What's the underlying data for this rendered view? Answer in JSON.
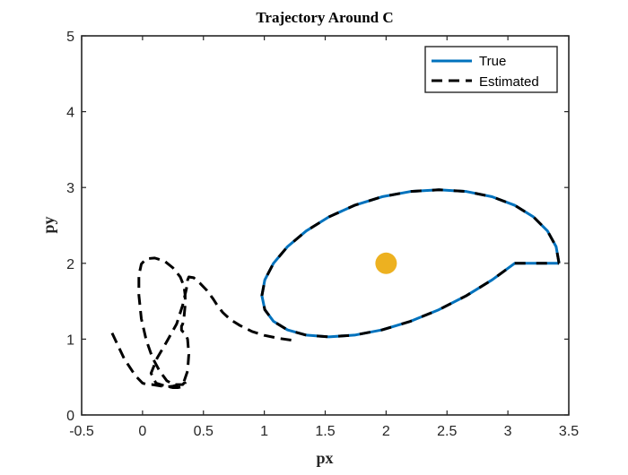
{
  "chart_data": {
    "type": "line",
    "title": "Trajectory Around C",
    "xlabel": "px",
    "ylabel": "py",
    "xlim": [
      -0.5,
      3.5
    ],
    "ylim": [
      0,
      5
    ],
    "xticks": [
      -0.5,
      0,
      0.5,
      1,
      1.5,
      2,
      2.5,
      3,
      3.5
    ],
    "xtick_labels": [
      "-0.5",
      "0",
      "0.5",
      "1",
      "1.5",
      "2",
      "2.5",
      "3",
      "3.5"
    ],
    "yticks": [
      0,
      1,
      2,
      3,
      4,
      5
    ],
    "ytick_labels": [
      "0",
      "1",
      "2",
      "3",
      "4",
      "5"
    ],
    "grid": false,
    "legend_position": "top-right",
    "series": [
      {
        "name": "True",
        "style": "solid",
        "color": "#0072BD",
        "x": [
          3.42,
          3.396,
          3.325,
          3.21,
          3.056,
          2.87,
          2.659,
          2.433,
          2.2,
          1.967,
          1.741,
          1.53,
          1.344,
          1.19,
          1.075,
          1.004,
          0.98,
          1.004,
          1.075,
          1.19,
          1.344,
          1.53,
          1.741,
          1.967,
          2.2,
          2.433,
          2.659,
          2.87,
          3.056,
          3.21,
          3.325,
          3.396,
          3.42
        ],
        "y": [
          2.0,
          2.219,
          2.427,
          2.612,
          2.765,
          2.878,
          2.947,
          2.97,
          2.947,
          2.878,
          2.765,
          2.612,
          2.427,
          2.219,
          2.0,
          1.781,
          1.573,
          1.388,
          1.235,
          1.122,
          1.053,
          1.03,
          1.053,
          1.122,
          1.235,
          1.388,
          1.573,
          1.781,
          2.0,
          2.0,
          2.0,
          2.0,
          2.0
        ]
      },
      {
        "name": "Estimated",
        "style": "dashed",
        "color": "#000000",
        "x": [
          -0.25,
          -0.15,
          -0.06,
          0.0,
          0.04,
          0.08,
          0.12,
          0.16,
          0.2,
          0.25,
          0.3,
          0.34,
          0.37,
          0.38,
          0.37,
          0.35,
          0.33,
          0.32,
          0.32,
          0.33,
          0.34,
          0.35,
          0.35,
          0.34,
          0.31,
          0.25,
          0.18,
          0.1,
          0.03,
          -0.01,
          -0.03,
          -0.03,
          -0.01,
          0.03,
          0.08,
          0.14,
          0.2,
          0.26,
          0.31,
          0.33,
          0.34,
          0.35,
          0.34,
          0.32,
          0.29,
          0.25,
          0.19,
          0.11,
          0.07,
          0.12,
          0.2,
          0.28,
          0.33,
          0.36,
          0.37,
          0.38,
          0.42,
          0.47,
          0.53,
          0.58,
          0.62,
          0.66,
          0.72,
          0.8,
          0.9,
          1.0,
          1.12,
          1.25
        ],
        "y": [
          1.08,
          0.74,
          0.52,
          0.42,
          0.4,
          0.4,
          0.39,
          0.38,
          0.37,
          0.38,
          0.4,
          0.44,
          0.58,
          0.8,
          1.0,
          1.08,
          1.1,
          1.12,
          1.17,
          1.2,
          1.28,
          1.45,
          1.58,
          1.7,
          1.82,
          1.94,
          2.03,
          2.07,
          2.06,
          1.99,
          1.84,
          1.58,
          1.27,
          0.99,
          0.76,
          0.58,
          0.45,
          0.4,
          0.4,
          0.4,
          0.42,
          0.42,
          0.39,
          0.37,
          0.36,
          0.36,
          0.38,
          0.42,
          0.55,
          0.75,
          0.97,
          1.2,
          1.45,
          1.66,
          1.78,
          1.82,
          1.81,
          1.74,
          1.64,
          1.53,
          1.43,
          1.35,
          1.26,
          1.18,
          1.1,
          1.05,
          1.01,
          0.98
        ]
      }
    ],
    "marker": {
      "x": 2.0,
      "y": 2.0,
      "color": "#EDB120"
    }
  }
}
